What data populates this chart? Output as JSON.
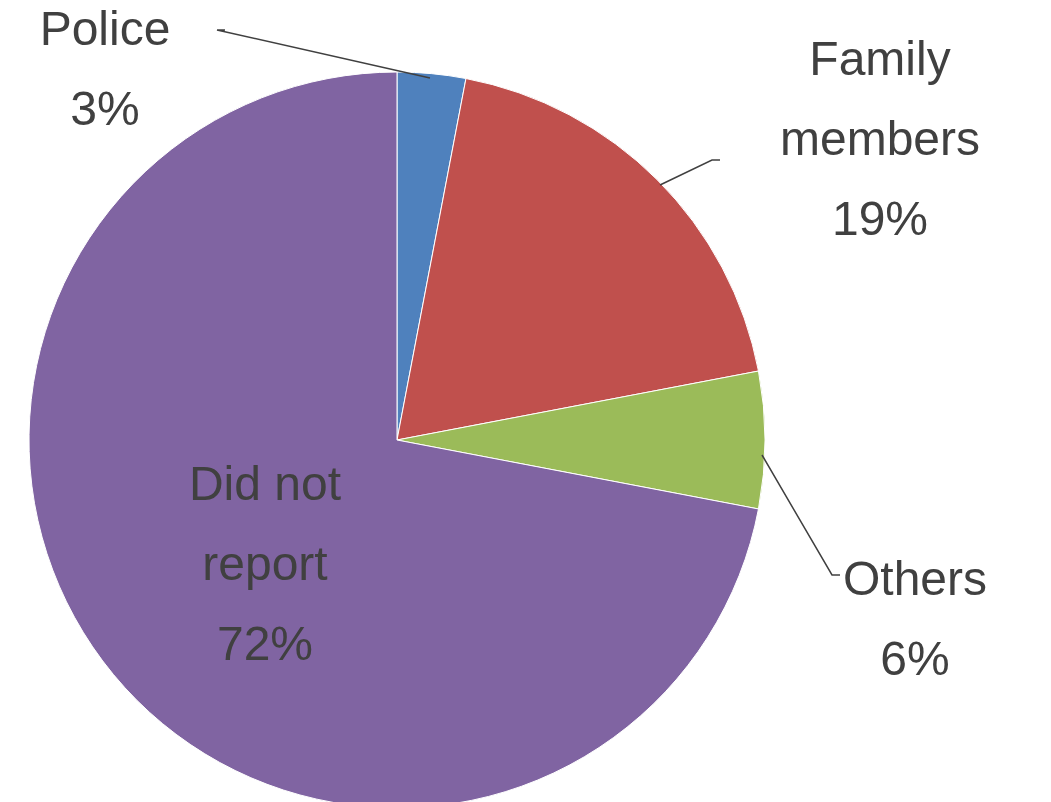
{
  "chart_data": {
    "type": "pie",
    "categories": [
      "Police",
      "Family members",
      "Others",
      "Did not report"
    ],
    "values": [
      3,
      19,
      6,
      72
    ],
    "colors": [
      "#4f81bd",
      "#c0504d",
      "#9bbb59",
      "#8064a2"
    ],
    "value_labels": [
      "3%",
      "19%",
      "6%",
      "72%"
    ]
  }
}
